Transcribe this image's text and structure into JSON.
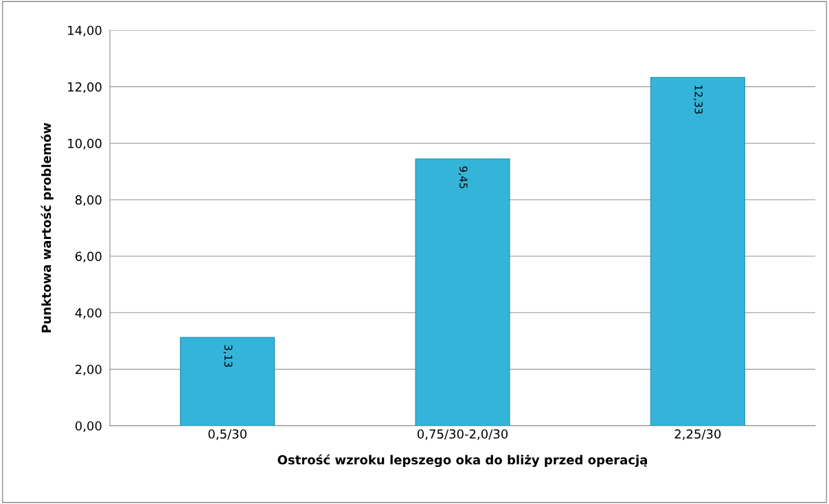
{
  "chart_data": {
    "type": "bar",
    "xlabel": "Ostrość wzroku lepszego oka do bliży przed operacją",
    "ylabel": "Punktowa wartość problemów",
    "categories": [
      "0,5/30",
      "0,75/30-2,0/30",
      "2,25/30"
    ],
    "values": [
      3.13,
      9.45,
      12.33
    ],
    "value_labels": [
      "3,13",
      "9,45",
      "12,33"
    ],
    "color": "#34b4d8",
    "ylim": [
      0,
      14
    ],
    "yticks": [
      {
        "value": 0,
        "label": "0,00"
      },
      {
        "value": 2,
        "label": "2,00"
      },
      {
        "value": 4,
        "label": "4,00"
      },
      {
        "value": 6,
        "label": "6,00"
      },
      {
        "value": 8,
        "label": "8,00"
      },
      {
        "value": 10,
        "label": "10,00"
      },
      {
        "value": 12,
        "label": "12,00"
      },
      {
        "value": 14,
        "label": "14,00"
      }
    ],
    "grid": "y",
    "legend": false
  }
}
